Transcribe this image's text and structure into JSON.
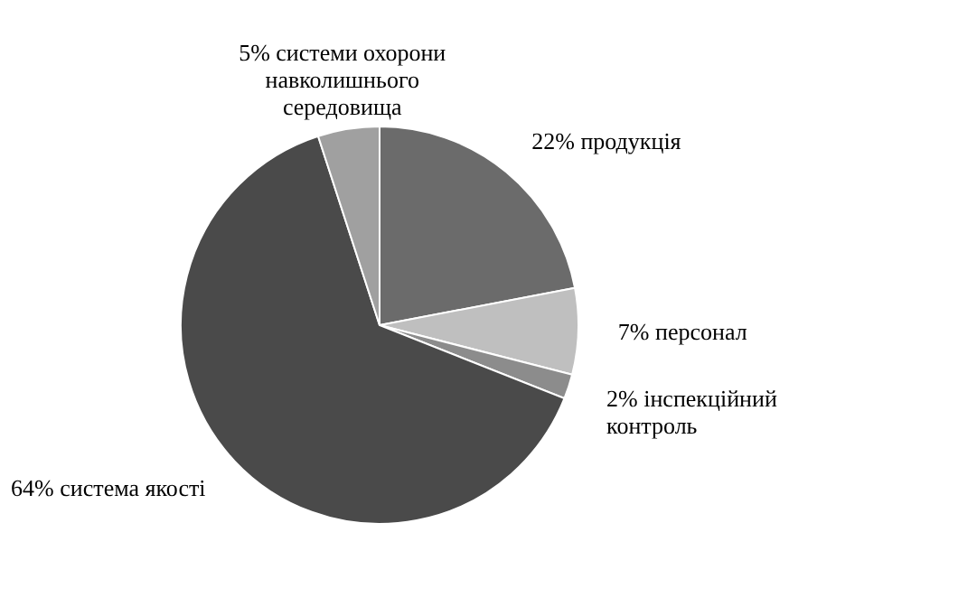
{
  "chart_data": {
    "type": "pie",
    "categories": [
      "продукція",
      "персонал",
      "інспекційний контроль",
      "система якості",
      "системи охорони навколишнього середовища"
    ],
    "values": [
      22,
      7,
      2,
      64,
      5
    ],
    "value_labels": [
      "22%",
      "7%",
      "2%",
      "64%",
      "5%"
    ],
    "colors": [
      "#6b6b6b",
      "#bfbfbf",
      "#8c8c8c",
      "#4a4a4a",
      "#a0a0a0"
    ]
  }
}
